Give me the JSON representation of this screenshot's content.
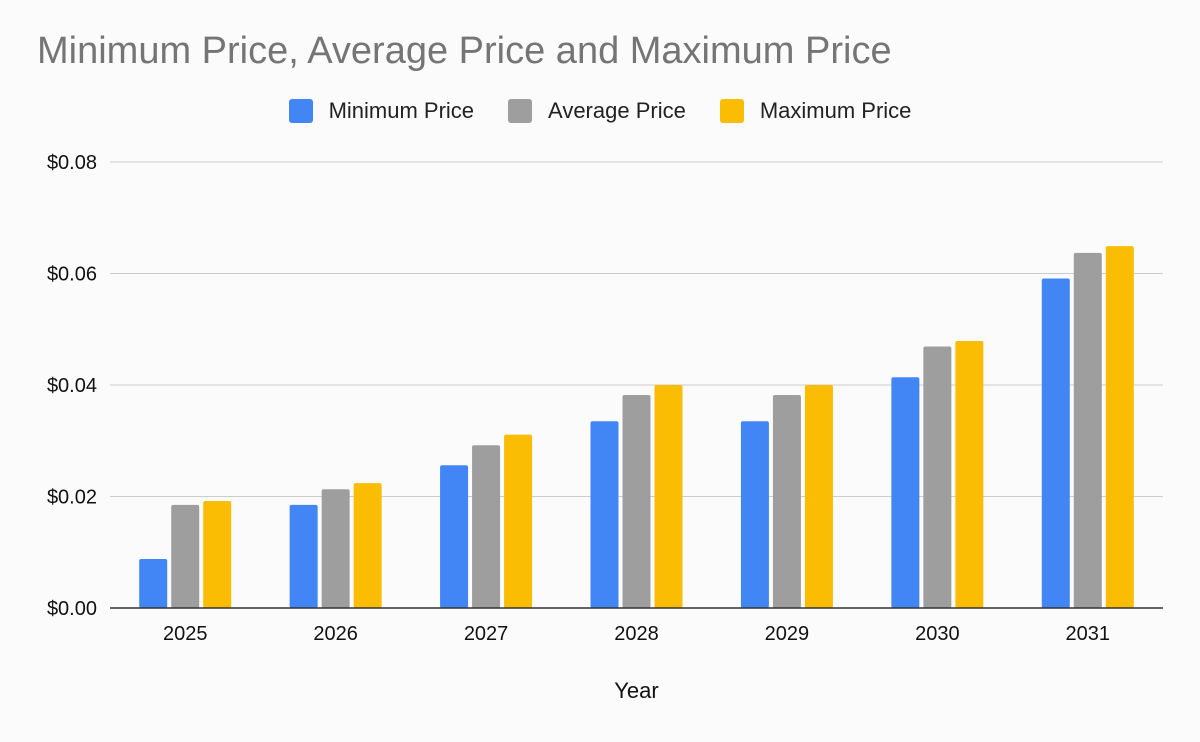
{
  "chart_data": {
    "type": "bar",
    "title": "Minimum Price, Average Price and Maximum Price",
    "xlabel": "Year",
    "ylabel": "",
    "categories": [
      "2025",
      "2026",
      "2027",
      "2028",
      "2029",
      "2030",
      "2031"
    ],
    "series": [
      {
        "name": "Minimum Price",
        "color": "#4285f4",
        "values": [
          0.0088,
          0.0185,
          0.0256,
          0.0335,
          0.0335,
          0.0414,
          0.0591
        ]
      },
      {
        "name": "Average Price",
        "color": "#9e9e9e",
        "values": [
          0.0185,
          0.0213,
          0.0292,
          0.0382,
          0.0382,
          0.0469,
          0.0637
        ]
      },
      {
        "name": "Maximum Price",
        "color": "#fbbc04",
        "values": [
          0.0192,
          0.0224,
          0.0311,
          0.04,
          0.04,
          0.0479,
          0.0649
        ]
      }
    ],
    "ylim": [
      0,
      0.08
    ],
    "yticks": [
      "$0.00",
      "$0.02",
      "$0.04",
      "$0.06",
      "$0.08"
    ],
    "ytick_values": [
      0,
      0.02,
      0.04,
      0.06,
      0.08
    ],
    "grid": true,
    "legend": "top-center"
  }
}
